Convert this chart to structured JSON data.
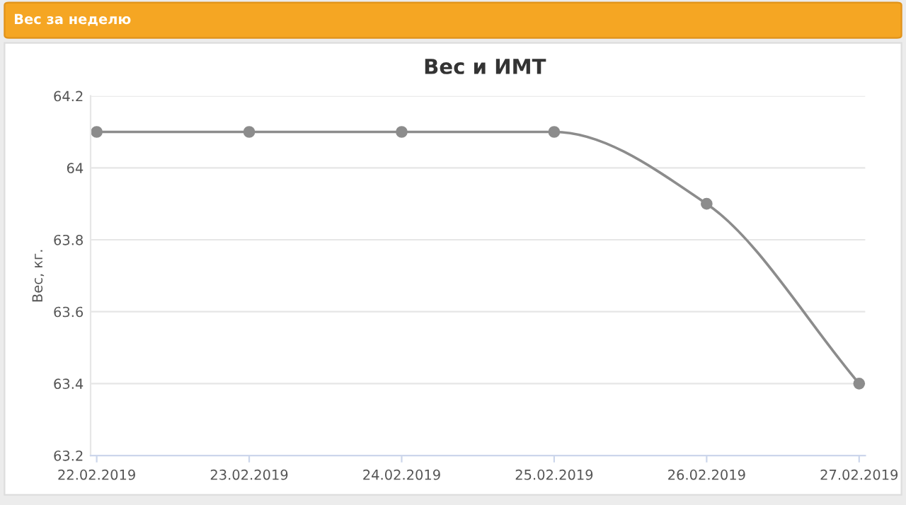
{
  "chart_data": {
    "type": "line",
    "title": "Вес за неделю",
    "subtitle": "Вес и ИМТ",
    "ylabel": "Вес, кг.",
    "categories": [
      "22.02.2019",
      "23.02.2019",
      "24.02.2019",
      "25.02.2019",
      "26.02.2019",
      "27.02.2019"
    ],
    "series": [
      {
        "color": "#8c8c8c",
        "values": [
          64.1,
          64.1,
          64.1,
          64.1,
          63.9,
          63.4
        ]
      }
    ],
    "ylim": [
      63.2,
      64.2
    ],
    "yticks": [
      {
        "value": 63.2,
        "label": "63.2"
      },
      {
        "value": 63.4,
        "label": "63.4"
      },
      {
        "value": 63.6,
        "label": "63.6"
      },
      {
        "value": 63.8,
        "label": "63.8"
      },
      {
        "value": 64,
        "label": "64"
      },
      {
        "value": 64.2,
        "label": "64.2"
      }
    ],
    "grid": "y",
    "marker": "circle",
    "line_style": "solid",
    "legend": false
  }
}
